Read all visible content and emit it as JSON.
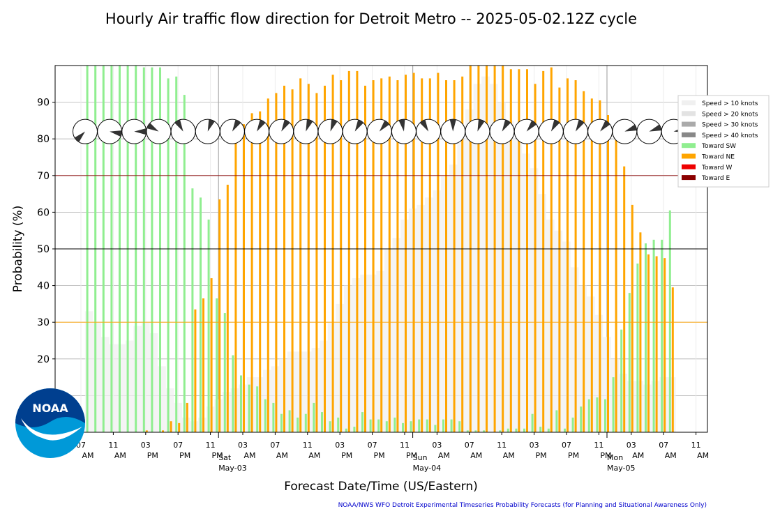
{
  "chart_data": {
    "type": "bar",
    "title": "Hourly Air traffic flow direction for Detroit Metro -- 2025-05-02.12Z cycle",
    "y_label": "Probability (%)",
    "x_label": "Forecast Date/Time (US/Eastern)",
    "footer": "NOAA/NWS WFO Detroit Experimental Timeseries Probability Forecasts (for Planning and Situational Awareness Only)",
    "logo_text": "NOAA",
    "ylim": [
      0,
      100
    ],
    "yticks": [
      10,
      20,
      30,
      40,
      50,
      60,
      70,
      80,
      90
    ],
    "grid": true,
    "reference_lines": [
      {
        "value": 70,
        "color": "#8b0000"
      },
      {
        "value": 50,
        "color": "#000000"
      },
      {
        "value": 30,
        "color": "#ffa500"
      }
    ],
    "legend": "right",
    "categories": [
      [
        "07",
        "AM"
      ],
      null,
      null,
      null,
      [
        "11",
        "AM"
      ],
      null,
      null,
      null,
      [
        "03",
        "PM"
      ],
      null,
      null,
      null,
      [
        "07",
        "PM"
      ],
      null,
      null,
      null,
      [
        "11",
        "PM"
      ],
      [
        "Sat",
        "May-03"
      ],
      null,
      null,
      [
        "03",
        "AM"
      ],
      null,
      null,
      null,
      [
        "07",
        "AM"
      ],
      null,
      null,
      null,
      [
        "11",
        "AM"
      ],
      null,
      null,
      null,
      [
        "03",
        "PM"
      ],
      null,
      null,
      null,
      [
        "07",
        "PM"
      ],
      null,
      null,
      null,
      [
        "11",
        "PM"
      ],
      [
        "Sun",
        "May-04"
      ],
      null,
      null,
      [
        "03",
        "AM"
      ],
      null,
      null,
      null,
      [
        "07",
        "AM"
      ],
      null,
      null,
      null,
      [
        "11",
        "AM"
      ],
      null,
      null,
      null,
      [
        "03",
        "PM"
      ],
      null,
      null,
      null,
      [
        "07",
        "PM"
      ],
      null,
      null,
      null,
      [
        "11",
        "PM"
      ],
      [
        "Mon",
        "May-05"
      ],
      null,
      null,
      [
        "03",
        "AM"
      ],
      null,
      null,
      null,
      [
        "07",
        "AM"
      ],
      null,
      null,
      null,
      [
        "11",
        "AM"
      ]
    ],
    "series": [
      {
        "name": "Speed > 10 knots",
        "color": "#f0f0f0",
        "background": true,
        "values": [
          null,
          33,
          30,
          26,
          24,
          24,
          25,
          29,
          30,
          27,
          18,
          12,
          8,
          4,
          3,
          4,
          7,
          9,
          11,
          12,
          13,
          15,
          15,
          17,
          18,
          20,
          22,
          22,
          22,
          23,
          25,
          30,
          35,
          40,
          42,
          43,
          43,
          44,
          50,
          53,
          58,
          61,
          62,
          64,
          66,
          70,
          73,
          80,
          88,
          95,
          97,
          95,
          90,
          85,
          80,
          76,
          72,
          65,
          58,
          55,
          52,
          45,
          40,
          37,
          32,
          26,
          20,
          16,
          14,
          14,
          13,
          14,
          15,
          15,
          null,
          null,
          null
        ]
      },
      {
        "name": "Speed > 20 knots",
        "color": "#e3e3e3",
        "background": true,
        "values": [
          null,
          0,
          0,
          0,
          0,
          0,
          0,
          0,
          0,
          0,
          0,
          0,
          0,
          0,
          0,
          0,
          0,
          0,
          0,
          0,
          0,
          0,
          0,
          0,
          0,
          0,
          0,
          0,
          0,
          0,
          0,
          0,
          0,
          0,
          0,
          0,
          0,
          0,
          0,
          0,
          0,
          0,
          0,
          0,
          0,
          0,
          0,
          0,
          0,
          0,
          0,
          0,
          0,
          0,
          0,
          0,
          0,
          0,
          0,
          0,
          0,
          0,
          0,
          0,
          0,
          0,
          0,
          0,
          0,
          0,
          0,
          0,
          0,
          0,
          null,
          null,
          null
        ]
      },
      {
        "name": "Speed > 30 knots",
        "color": "#aaaaaa",
        "background": true,
        "values": [
          null,
          0,
          0,
          0,
          0,
          0,
          0,
          0,
          0,
          0,
          0,
          0,
          0,
          0,
          0,
          0,
          0,
          0,
          0,
          0,
          0,
          0,
          0,
          0,
          0,
          0,
          0,
          0,
          0,
          0,
          0,
          0,
          0,
          0,
          0,
          0,
          0,
          0,
          0,
          0,
          0,
          0,
          0,
          0,
          0,
          0,
          0,
          0,
          0,
          0,
          0,
          0,
          0,
          0,
          0,
          0,
          0,
          0,
          0,
          0,
          0,
          0,
          0,
          0,
          0,
          0,
          0,
          0,
          0,
          0,
          0,
          0,
          0,
          0,
          null,
          null,
          null
        ]
      },
      {
        "name": "Speed > 40 knots",
        "color": "#888888",
        "background": true,
        "values": [
          null,
          0,
          0,
          0,
          0,
          0,
          0,
          0,
          0,
          0,
          0,
          0,
          0,
          0,
          0,
          0,
          0,
          0,
          0,
          0,
          0,
          0,
          0,
          0,
          0,
          0,
          0,
          0,
          0,
          0,
          0,
          0,
          0,
          0,
          0,
          0,
          0,
          0,
          0,
          0,
          0,
          0,
          0,
          0,
          0,
          0,
          0,
          0,
          0,
          0,
          0,
          0,
          0,
          0,
          0,
          0,
          0,
          0,
          0,
          0,
          0,
          0,
          0,
          0,
          0,
          0,
          0,
          0,
          0,
          0,
          0,
          0,
          0,
          0,
          null,
          null,
          null
        ]
      },
      {
        "name": "Toward SW",
        "color": "#90ee90",
        "values": [
          null,
          100,
          100,
          100,
          100,
          100,
          100,
          100,
          99.5,
          99.5,
          99.5,
          96.5,
          97,
          92,
          66.5,
          64,
          58,
          36.5,
          32.5,
          21,
          15.5,
          13,
          12.5,
          9,
          8,
          5,
          6,
          4,
          5,
          8,
          5.5,
          3,
          4,
          1,
          1.5,
          5.5,
          3.5,
          3.5,
          3,
          4,
          2.5,
          3,
          3.5,
          3.5,
          2,
          3.5,
          3.5,
          3,
          0.5,
          0.5,
          0.5,
          0,
          0.5,
          1,
          1,
          1,
          5,
          1.5,
          1,
          6,
          1,
          4,
          7,
          9,
          9.5,
          9,
          15,
          28,
          38,
          46,
          51.5,
          52.5,
          52.5,
          60.5,
          null,
          null,
          null
        ]
      },
      {
        "name": "Toward NE",
        "color": "#ffa500",
        "values": [
          null,
          0,
          0,
          0,
          0,
          0,
          0,
          0,
          0.5,
          0,
          0.5,
          3,
          2.5,
          8,
          33.5,
          36.5,
          42,
          63.5,
          67.5,
          80,
          84,
          87,
          87.5,
          91,
          92.5,
          94.5,
          93.5,
          96.5,
          95,
          92.5,
          94.5,
          97.5,
          96,
          98.5,
          98.5,
          94.5,
          96,
          96.5,
          97,
          96,
          97.5,
          98,
          96.5,
          96.5,
          98,
          96,
          96,
          97,
          100,
          100,
          100,
          100,
          100,
          99,
          99,
          99,
          95,
          98.5,
          99.5,
          94,
          96.5,
          96,
          93,
          91,
          90.5,
          86.5,
          82,
          72.5,
          62,
          54.5,
          48.5,
          48,
          47.5,
          39.5,
          null,
          null,
          null
        ]
      },
      {
        "name": "Toward W",
        "color": "#ee0000",
        "values": [
          null,
          0,
          0,
          0,
          0,
          0,
          0,
          0,
          0,
          0,
          0,
          0,
          0,
          0,
          0,
          0,
          0,
          0,
          0,
          0,
          0,
          0,
          0,
          0,
          0,
          0,
          0,
          0,
          0,
          0,
          0,
          0,
          0,
          0,
          0,
          0,
          0,
          0,
          0,
          0,
          0,
          0,
          0,
          0,
          0,
          0,
          0,
          0,
          0,
          0,
          0,
          0,
          0,
          0,
          0,
          0,
          0,
          0,
          0,
          0,
          0,
          0,
          0,
          0,
          0,
          0,
          0,
          0,
          0,
          0,
          0,
          0,
          0,
          0,
          null,
          null,
          null
        ]
      },
      {
        "name": "Toward E",
        "color": "#8b0000",
        "values": [
          null,
          0,
          0,
          0,
          0,
          0,
          0,
          0,
          0,
          0,
          0,
          0,
          0,
          0,
          0,
          0,
          0,
          0,
          0,
          0,
          0,
          0,
          0,
          0,
          0,
          0,
          0,
          0,
          0,
          0,
          0,
          0,
          0,
          0,
          0,
          0,
          0,
          0,
          0,
          0,
          0,
          0,
          0,
          0,
          0,
          0,
          0,
          0,
          0,
          0,
          0,
          0,
          0,
          0,
          0,
          0,
          0,
          0,
          0,
          0,
          0,
          0,
          0,
          0,
          0,
          0,
          0,
          0,
          0,
          0,
          0,
          0,
          0,
          0,
          null,
          null,
          null
        ]
      }
    ],
    "glyph_y": 82,
    "glyph_directions": [
      225,
      100,
      90,
      300,
      330,
      20,
      30,
      30,
      30,
      20,
      20,
      30,
      40,
      350,
      330,
      0,
      20,
      30,
      40,
      30,
      30,
      40,
      70,
      70,
      80
    ]
  }
}
